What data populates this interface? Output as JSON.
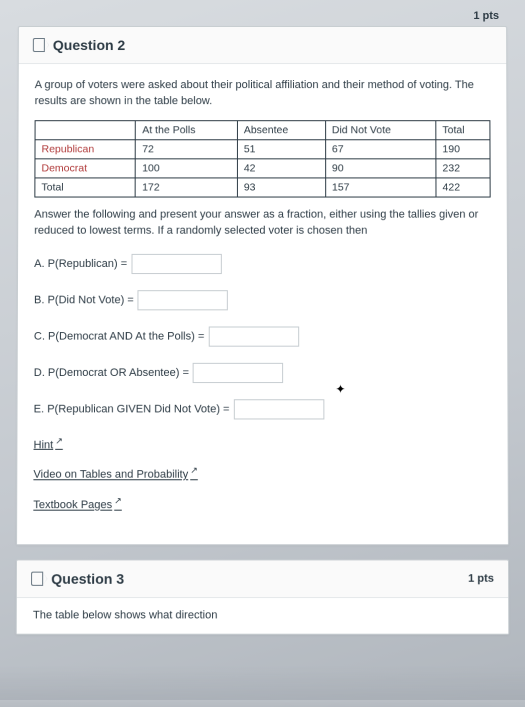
{
  "points_label": "1 pts",
  "q2": {
    "title": "Question 2",
    "prompt": "A group of voters were asked about their political affiliation and their method of voting. The results are shown in the table below.",
    "table": {
      "columns": [
        "",
        "At the Polls",
        "Absentee",
        "Did Not Vote",
        "Total"
      ],
      "rows": [
        {
          "label": "Republican",
          "cells": [
            "72",
            "51",
            "67",
            "190"
          ]
        },
        {
          "label": "Democrat",
          "cells": [
            "100",
            "42",
            "90",
            "232"
          ]
        },
        {
          "label": "Total",
          "cells": [
            "172",
            "93",
            "157",
            "422"
          ]
        }
      ],
      "border_color": "#2d3b45",
      "row_label_color": "#b03a3a"
    },
    "instruction": "Answer the following and present your answer as a fraction, either using the tallies given or reduced to lowest terms. If a randomly selected voter is chosen then",
    "parts": {
      "a": "A. P(Republican) =",
      "b": "B. P(Did Not Vote) =",
      "c": "C. P(Democrat AND At the Polls) =",
      "d": "D. P(Democrat OR Absentee) =",
      "e": "E. P(Republican GIVEN Did Not Vote) ="
    },
    "links": {
      "hint": "Hint",
      "video": "Video on Tables and Probability",
      "textbook": "Textbook Pages"
    }
  },
  "q3": {
    "title": "Question 3",
    "points_label": "1 pts",
    "prompt_partial": "The table below shows what direction"
  }
}
